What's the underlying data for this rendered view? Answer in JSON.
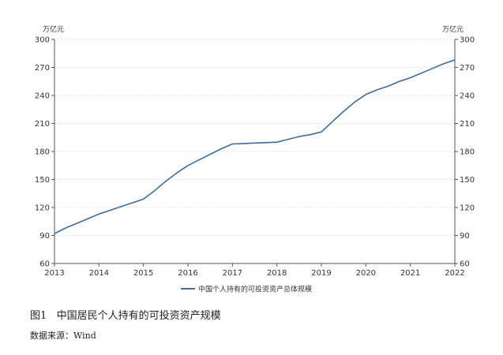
{
  "chart_data": {
    "type": "line",
    "title": "",
    "xlabel": "",
    "ylabel_left": "万亿元",
    "ylabel_right": "万亿元",
    "xlim": [
      2013,
      2022
    ],
    "ylim": [
      60,
      300
    ],
    "y_ticks": [
      60,
      90,
      120,
      150,
      180,
      210,
      240,
      270,
      300
    ],
    "x_ticks": [
      2013,
      2014,
      2015,
      2016,
      2017,
      2018,
      2019,
      2020,
      2021,
      2022
    ],
    "grid": "horizontal-dashed",
    "legend_position": "bottom-center",
    "series": [
      {
        "name": "中国个人持有的可投资资产总体规模",
        "color": "#3c6e9a",
        "x": [
          2013,
          2013.25,
          2013.5,
          2013.75,
          2014,
          2014.25,
          2014.5,
          2014.75,
          2015,
          2015.25,
          2015.5,
          2015.75,
          2016,
          2016.25,
          2016.5,
          2016.75,
          2017,
          2017.25,
          2017.5,
          2017.75,
          2018,
          2018.25,
          2018.5,
          2018.75,
          2019,
          2019.25,
          2019.5,
          2019.75,
          2020,
          2020.25,
          2020.5,
          2020.75,
          2021,
          2021.25,
          2021.5,
          2021.75,
          2022
        ],
        "y": [
          92,
          98,
          103,
          108,
          113,
          117,
          121,
          125,
          129,
          138,
          148,
          157,
          165,
          171,
          177,
          183,
          188,
          188.5,
          189,
          189.5,
          190,
          193,
          196,
          198,
          201,
          212,
          223,
          233,
          241,
          246,
          250,
          255,
          259,
          264,
          269,
          274,
          278
        ]
      }
    ]
  },
  "caption": "图1   中国居民个人持有的可投资资产规模",
  "source": "数据来源：Wind"
}
